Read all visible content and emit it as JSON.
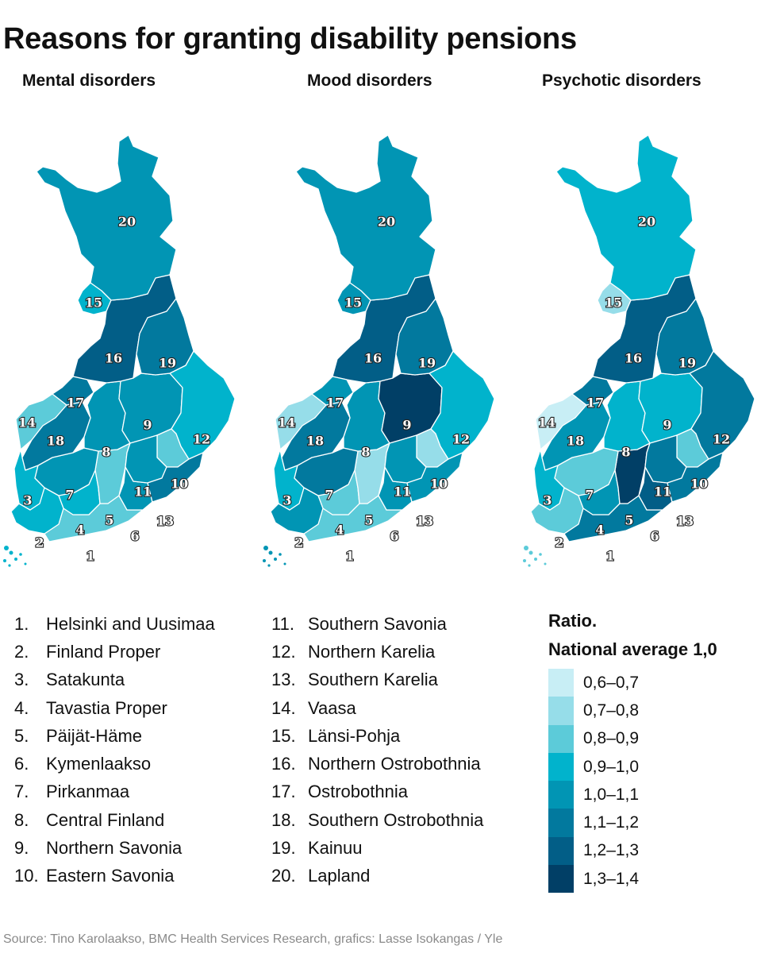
{
  "title": "Reasons for granting disability pensions",
  "palette": {
    "c1": "#c8eef5",
    "c2": "#96dde9",
    "c3": "#5ccbd9",
    "c4": "#01b3cc",
    "c5": "#0195b4",
    "c6": "#02799e",
    "c7": "#025e87",
    "c8": "#013f66"
  },
  "maps": [
    {
      "title": "Mental disorders",
      "regions": {
        "1": "c3",
        "2": "c4",
        "3": "c4",
        "4": "c4",
        "5": "c3",
        "6": "c5",
        "7": "c5",
        "8": "c5",
        "9": "c5",
        "10": "c3",
        "11": "c5",
        "12": "c4",
        "13": "c6",
        "14": "c3",
        "15": "c4",
        "16": "c7",
        "17": "c6",
        "18": "c6",
        "19": "c6",
        "20": "c5"
      }
    },
    {
      "title": "Mood disorders",
      "regions": {
        "1": "c3",
        "2": "c5",
        "3": "c4",
        "4": "c3",
        "5": "c2",
        "6": "c5",
        "7": "c6",
        "8": "c5",
        "9": "c8",
        "10": "c2",
        "11": "c5",
        "12": "c4",
        "13": "c5",
        "14": "c2",
        "15": "c5",
        "16": "c7",
        "17": "c5",
        "18": "c6",
        "19": "c6",
        "20": "c5"
      }
    },
    {
      "title": "Psychotic disorders",
      "regions": {
        "1": "c6",
        "2": "c3",
        "3": "c4",
        "4": "c5",
        "5": "c8",
        "6": "c7",
        "7": "c3",
        "8": "c4",
        "9": "c4",
        "10": "c3",
        "11": "c6",
        "12": "c6",
        "13": "c6",
        "14": "c1",
        "15": "c2",
        "16": "c7",
        "17": "c6",
        "18": "c5",
        "19": "c6",
        "20": "c4"
      }
    }
  ],
  "key": {
    "col1": [
      {
        "num": "1.",
        "name": "Helsinki and Uusimaa"
      },
      {
        "num": "2.",
        "name": "Finland Proper"
      },
      {
        "num": "3.",
        "name": "Satakunta"
      },
      {
        "num": "4.",
        "name": "Tavastia Proper"
      },
      {
        "num": "5.",
        "name": "Päijät-Häme"
      },
      {
        "num": "6.",
        "name": "Kymenlaakso"
      },
      {
        "num": "7.",
        "name": "Pirkanmaa"
      },
      {
        "num": "8.",
        "name": "Central Finland"
      },
      {
        "num": "9.",
        "name": "Northern Savonia"
      },
      {
        "num": "10.",
        "name": "Eastern Savonia"
      }
    ],
    "col2": [
      {
        "num": "11.",
        "name": "Southern Savonia"
      },
      {
        "num": "12.",
        "name": "Northern Karelia"
      },
      {
        "num": "13.",
        "name": "Southern Karelia"
      },
      {
        "num": "14.",
        "name": "Vaasa"
      },
      {
        "num": "15.",
        "name": "Länsi-Pohja"
      },
      {
        "num": "16.",
        "name": "Northern Ostrobothnia"
      },
      {
        "num": "17.",
        "name": "Ostrobothnia"
      },
      {
        "num": "18.",
        "name": "Southern Ostrobothnia"
      },
      {
        "num": "19.",
        "name": "Kainuu"
      },
      {
        "num": "20.",
        "name": "Lapland"
      }
    ]
  },
  "legend": {
    "heading1": "Ratio.",
    "heading2": "National average 1,0",
    "items": [
      {
        "label": "0,6–0,7",
        "color": "#c8eef5"
      },
      {
        "label": "0,7–0,8",
        "color": "#96dde9"
      },
      {
        "label": "0,8–0,9",
        "color": "#5ccbd9"
      },
      {
        "label": "0,9–1,0",
        "color": "#01b3cc"
      },
      {
        "label": "1,0–1,1",
        "color": "#0195b4"
      },
      {
        "label": "1,1–1,2",
        "color": "#02799e"
      },
      {
        "label": "1,2–1,3",
        "color": "#025e87"
      },
      {
        "label": "1,3–1,4",
        "color": "#013f66"
      }
    ]
  },
  "source": "Source: Tino Karolaakso, BMC Health Services Research, grafics: Lasse Isokangas / Yle"
}
